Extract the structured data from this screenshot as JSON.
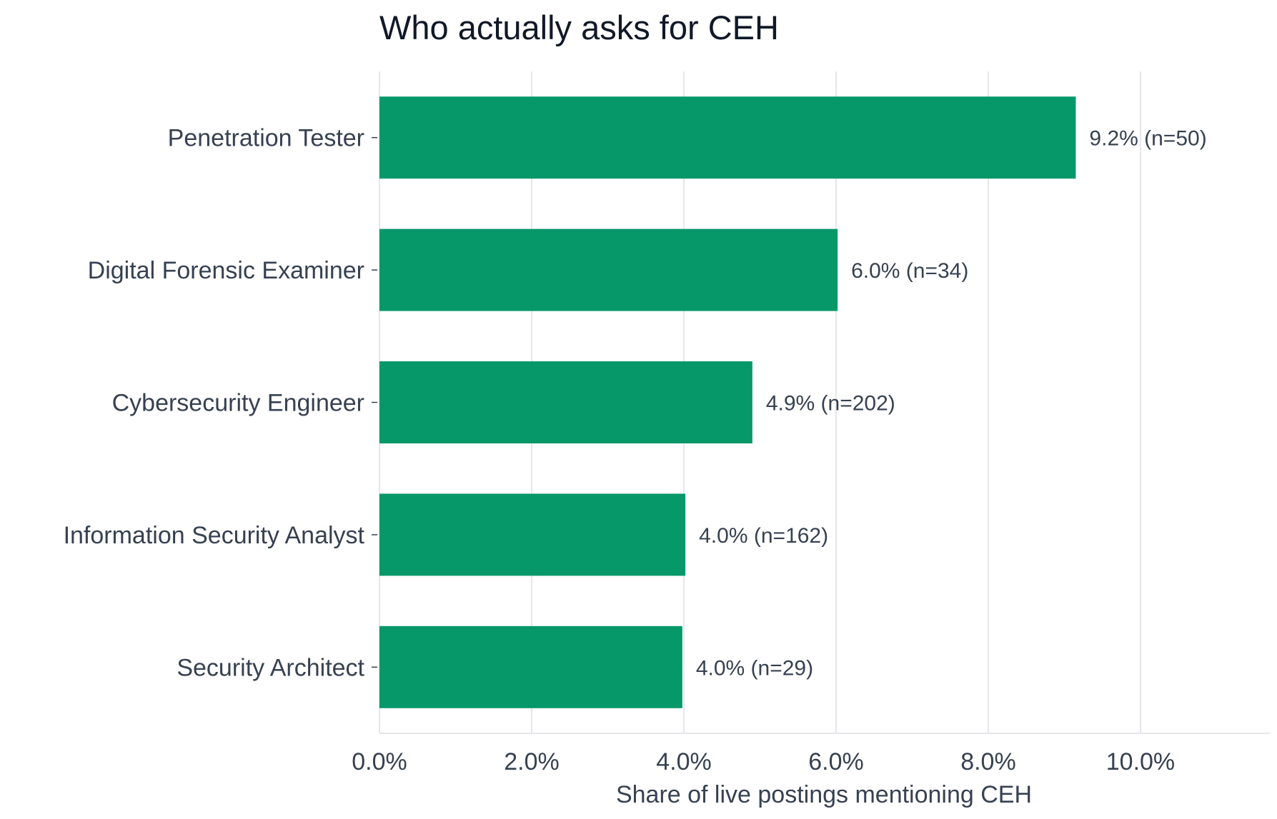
{
  "chart_data": {
    "type": "bar",
    "orientation": "horizontal",
    "title": "Who actually asks for CEH",
    "xlabel": "Share of live postings mentioning CEH",
    "ylabel": "",
    "xlim": [
      0,
      11.7
    ],
    "xticks": [
      0,
      2,
      4,
      6,
      8,
      10
    ],
    "xtick_labels": [
      "0.0%",
      "2.0%",
      "4.0%",
      "6.0%",
      "8.0%",
      "10.0%"
    ],
    "grid": "vertical",
    "bar_color": "#069869",
    "categories": [
      "Penetration Tester",
      "Digital Forensic Examiner",
      "Cybersecurity Engineer",
      "Information Security Analyst",
      "Security Architect"
    ],
    "values": [
      9.15,
      6.02,
      4.9,
      4.02,
      3.98
    ],
    "data_labels": [
      "9.2%  (n=50)",
      "6.0%  (n=34)",
      "4.9%  (n=202)",
      "4.0%  (n=162)",
      "4.0%  (n=29)"
    ]
  }
}
